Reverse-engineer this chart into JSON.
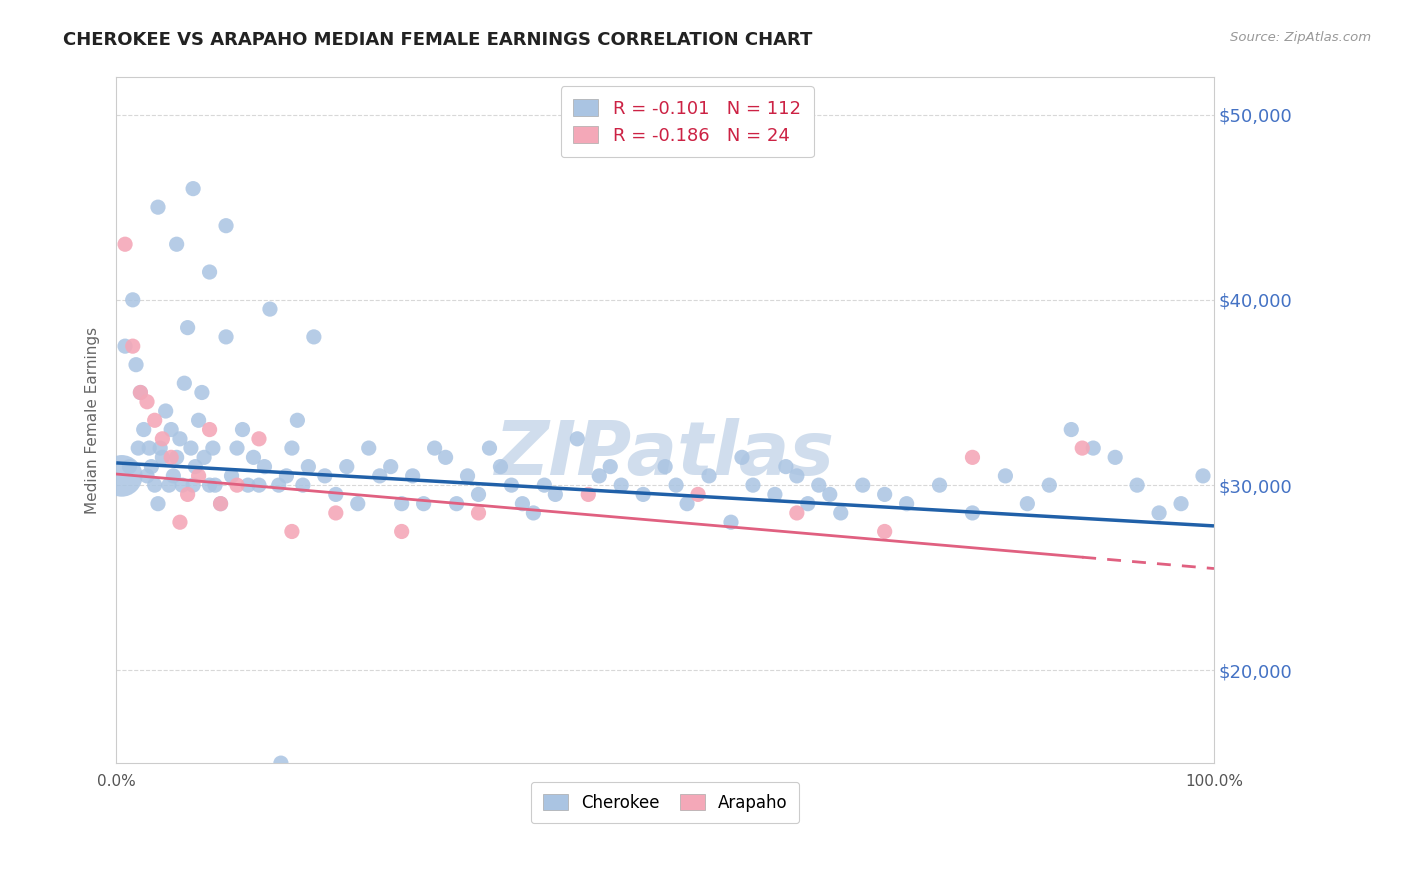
{
  "title": "CHEROKEE VS ARAPAHO MEDIAN FEMALE EARNINGS CORRELATION CHART",
  "source": "Source: ZipAtlas.com",
  "ylabel": "Median Female Earnings",
  "xlim": [
    0,
    1
  ],
  "ylim": [
    15000,
    52000
  ],
  "yticks": [
    20000,
    30000,
    40000,
    50000
  ],
  "ytick_labels": [
    "$20,000",
    "$30,000",
    "$40,000",
    "$50,000"
  ],
  "cherokee_R": -0.101,
  "cherokee_N": 112,
  "arapaho_R": -0.186,
  "arapaho_N": 24,
  "cherokee_color": "#aac4e2",
  "cherokee_line_color": "#2060a8",
  "arapaho_color": "#f4a8b8",
  "arapaho_line_color": "#e06080",
  "background_color": "#ffffff",
  "grid_color": "#d8d8d8",
  "right_label_color": "#4472c4",
  "watermark_color": "#c8d8ea",
  "legend_text_color": "#cc2244",
  "legend_N_color": "#2060a8",
  "cherokee_trend_y0": 31200,
  "cherokee_trend_y1": 27800,
  "arapaho_trend_y0": 30600,
  "arapaho_trend_y1": 25500,
  "point_size": 120,
  "large_point_size": 900,
  "cherokee_x": [
    0.005,
    0.008,
    0.012,
    0.015,
    0.018,
    0.02,
    0.022,
    0.025,
    0.028,
    0.03,
    0.032,
    0.035,
    0.038,
    0.04,
    0.042,
    0.045,
    0.048,
    0.05,
    0.052,
    0.055,
    0.058,
    0.06,
    0.062,
    0.065,
    0.068,
    0.07,
    0.072,
    0.075,
    0.078,
    0.08,
    0.085,
    0.088,
    0.09,
    0.095,
    0.1,
    0.105,
    0.11,
    0.115,
    0.12,
    0.125,
    0.13,
    0.135,
    0.14,
    0.148,
    0.155,
    0.16,
    0.165,
    0.17,
    0.175,
    0.18,
    0.19,
    0.2,
    0.21,
    0.22,
    0.23,
    0.24,
    0.25,
    0.26,
    0.27,
    0.28,
    0.29,
    0.3,
    0.31,
    0.32,
    0.33,
    0.34,
    0.35,
    0.36,
    0.37,
    0.38,
    0.39,
    0.4,
    0.42,
    0.44,
    0.45,
    0.46,
    0.48,
    0.5,
    0.51,
    0.52,
    0.54,
    0.56,
    0.57,
    0.58,
    0.6,
    0.61,
    0.62,
    0.63,
    0.64,
    0.65,
    0.66,
    0.68,
    0.7,
    0.72,
    0.75,
    0.78,
    0.81,
    0.83,
    0.85,
    0.87,
    0.89,
    0.91,
    0.93,
    0.95,
    0.97,
    0.99,
    0.038,
    0.055,
    0.07,
    0.085,
    0.1,
    0.15
  ],
  "cherokee_y": [
    30500,
    37500,
    31000,
    40000,
    36500,
    32000,
    35000,
    33000,
    30500,
    32000,
    31000,
    30000,
    29000,
    32000,
    31500,
    34000,
    30000,
    33000,
    30500,
    31500,
    32500,
    30000,
    35500,
    38500,
    32000,
    30000,
    31000,
    33500,
    35000,
    31500,
    30000,
    32000,
    30000,
    29000,
    38000,
    30500,
    32000,
    33000,
    30000,
    31500,
    30000,
    31000,
    39500,
    30000,
    30500,
    32000,
    33500,
    30000,
    31000,
    38000,
    30500,
    29500,
    31000,
    29000,
    32000,
    30500,
    31000,
    29000,
    30500,
    29000,
    32000,
    31500,
    29000,
    30500,
    29500,
    32000,
    31000,
    30000,
    29000,
    28500,
    30000,
    29500,
    32500,
    30500,
    31000,
    30000,
    29500,
    31000,
    30000,
    29000,
    30500,
    28000,
    31500,
    30000,
    29500,
    31000,
    30500,
    29000,
    30000,
    29500,
    28500,
    30000,
    29500,
    29000,
    30000,
    28500,
    30500,
    29000,
    30000,
    33000,
    32000,
    31500,
    30000,
    28500,
    29000,
    30500,
    45000,
    43000,
    46000,
    41500,
    44000,
    15000
  ],
  "arapaho_x": [
    0.008,
    0.015,
    0.022,
    0.028,
    0.035,
    0.042,
    0.05,
    0.058,
    0.065,
    0.075,
    0.085,
    0.095,
    0.11,
    0.13,
    0.16,
    0.2,
    0.26,
    0.33,
    0.43,
    0.53,
    0.62,
    0.7,
    0.78,
    0.88
  ],
  "arapaho_y": [
    43000,
    37500,
    35000,
    34500,
    33500,
    32500,
    31500,
    28000,
    29500,
    30500,
    33000,
    29000,
    30000,
    32500,
    27500,
    28500,
    27500,
    28500,
    29500,
    29500,
    28500,
    27500,
    31500,
    32000
  ]
}
